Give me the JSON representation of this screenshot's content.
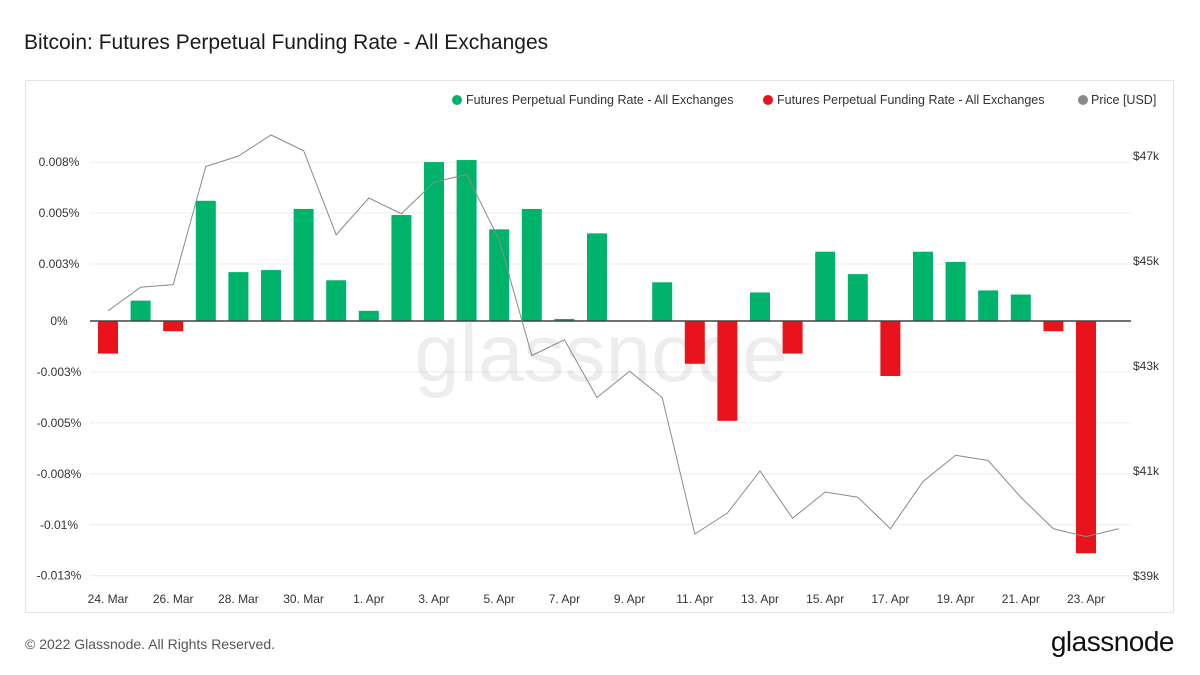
{
  "title": "Bitcoin: Futures Perpetual Funding Rate - All Exchanges",
  "footer": {
    "copyright": "© 2022 Glassnode. All Rights Reserved.",
    "brand": "glassnode"
  },
  "watermark": "glassnode",
  "colors": {
    "positive": "#00b36b",
    "negative": "#e8131b",
    "price": "#8a8a8a",
    "grid": "#ececec",
    "zero": "#444444"
  },
  "chart_data": {
    "type": "bar",
    "title": "Bitcoin: Futures Perpetual Funding Rate - All Exchanges",
    "x": [
      "24 Mar",
      "25 Mar",
      "26 Mar",
      "27 Mar",
      "28 Mar",
      "29 Mar",
      "30 Mar",
      "31 Mar",
      "1 Apr",
      "2 Apr",
      "3 Apr",
      "4 Apr",
      "5 Apr",
      "6 Apr",
      "7 Apr",
      "8 Apr",
      "9 Apr",
      "10 Apr",
      "11 Apr",
      "12 Apr",
      "13 Apr",
      "14 Apr",
      "15 Apr",
      "16 Apr",
      "17 Apr",
      "18 Apr",
      "19 Apr",
      "20 Apr",
      "21 Apr",
      "22 Apr",
      "23 Apr",
      "24 Apr"
    ],
    "xticks": [
      "24. Mar",
      "26. Mar",
      "28. Mar",
      "30. Mar",
      "1. Apr",
      "3. Apr",
      "5. Apr",
      "7. Apr",
      "9. Apr",
      "11. Apr",
      "13. Apr",
      "15. Apr",
      "17. Apr",
      "19. Apr",
      "21. Apr",
      "23. Apr"
    ],
    "series": [
      {
        "name": "Futures Perpetual Funding Rate - All Exchanges",
        "axis": "left",
        "color_rule": "green when positive, red when negative",
        "values": [
          -0.0016,
          0.001,
          -0.0005,
          0.0059,
          0.0024,
          0.0025,
          0.0055,
          0.002,
          0.0005,
          0.0052,
          0.0078,
          0.0079,
          0.0045,
          0.0055,
          0.0001,
          0.0043,
          null,
          0.0019,
          -0.0021,
          -0.0049,
          0.0014,
          -0.0016,
          0.0034,
          0.0023,
          -0.0027,
          0.0034,
          0.0029,
          0.0015,
          0.0013,
          -0.0005,
          -0.0114,
          null
        ]
      },
      {
        "name": "Futures Perpetual Funding Rate - All Exchanges",
        "axis": "left",
        "color_rule": "negative legend entry"
      },
      {
        "name": "Price [USD]",
        "axis": "right",
        "type": "line",
        "values": [
          44050,
          44500,
          44550,
          46800,
          47000,
          47400,
          47100,
          45500,
          46200,
          45900,
          46500,
          46650,
          45400,
          43200,
          43500,
          42400,
          42900,
          42400,
          39800,
          40200,
          41000,
          40100,
          40600,
          40500,
          39900,
          40800,
          41300,
          41200,
          40500,
          39900,
          39750,
          39900
        ]
      }
    ],
    "y_left": {
      "ticks": [
        "0.008%",
        "0.005%",
        "0.003%",
        "0%",
        "-0.003%",
        "-0.005%",
        "-0.008%",
        "-0.01%",
        "-0.013%"
      ],
      "range": [
        -0.0125,
        0.0075
      ]
    },
    "y_right": {
      "ticks": [
        "$47k",
        "$45k",
        "$43k",
        "$41k",
        "$39k"
      ],
      "range": [
        39000,
        47000
      ]
    },
    "legend": {
      "position": "top-right"
    },
    "grid": true
  }
}
